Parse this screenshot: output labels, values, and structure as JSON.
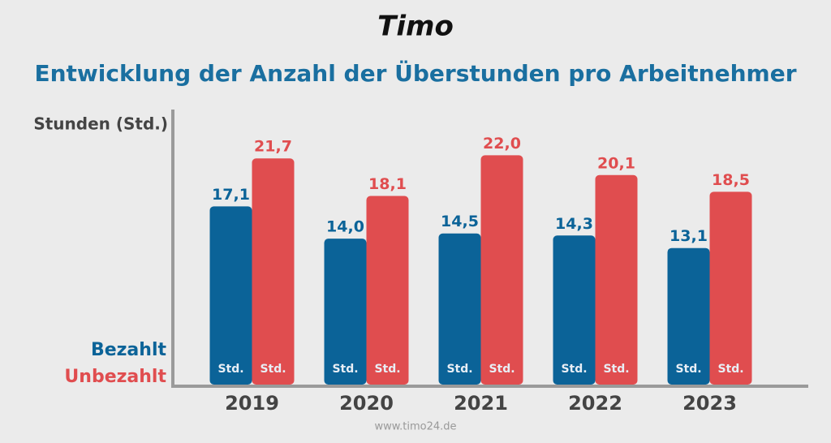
{
  "chart_data": {
    "type": "bar",
    "logo": "Timo",
    "title": "Entwicklung der Anzahl der Überstunden pro Arbeitnehmer",
    "y_label": "Stunden (Std.)",
    "unit_label": "Std.",
    "footer": "www.timo24.de",
    "categories": [
      "2019",
      "2020",
      "2021",
      "2022",
      "2023"
    ],
    "series": [
      {
        "name": "Bezahlt",
        "color": "#0b6398",
        "values": [
          17.1,
          14.0,
          14.5,
          14.3,
          13.1
        ],
        "value_labels": [
          "17,1",
          "14,0",
          "14,5",
          "14,3",
          "13,1"
        ]
      },
      {
        "name": "Unbezahlt",
        "color": "#e04d4f",
        "values": [
          21.7,
          18.1,
          22.0,
          20.1,
          18.5
        ],
        "value_labels": [
          "21,7",
          "18,1",
          "22,0",
          "20,1",
          "18,5"
        ]
      }
    ],
    "ylim": [
      0,
      26
    ],
    "grid": false
  }
}
